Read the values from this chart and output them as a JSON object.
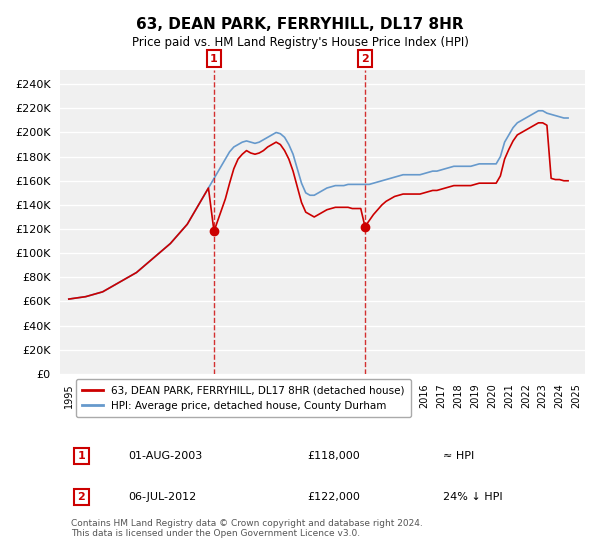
{
  "title": "63, DEAN PARK, FERRYHILL, DL17 8HR",
  "subtitle": "Price paid vs. HM Land Registry's House Price Index (HPI)",
  "ylabel_ticks": [
    0,
    20000,
    40000,
    60000,
    80000,
    100000,
    120000,
    140000,
    160000,
    180000,
    200000,
    220000,
    240000
  ],
  "ylim": [
    0,
    252000
  ],
  "xlim": [
    1994.5,
    2025.5
  ],
  "background_color": "#ffffff",
  "plot_bg_color": "#f0f0f0",
  "grid_color": "#ffffff",
  "red_line_color": "#cc0000",
  "blue_line_color": "#6699cc",
  "marker1_year": 2003.58,
  "marker1_value": 118000,
  "marker2_year": 2012.5,
  "marker2_value": 122000,
  "legend_label_red": "63, DEAN PARK, FERRYHILL, DL17 8HR (detached house)",
  "legend_label_blue": "HPI: Average price, detached house, County Durham",
  "footnote": "Contains HM Land Registry data © Crown copyright and database right 2024.\nThis data is licensed under the Open Government Licence v3.0.",
  "table_row1_num": "1",
  "table_row1_date": "01-AUG-2003",
  "table_row1_price": "£118,000",
  "table_row1_hpi": "≈ HPI",
  "table_row2_num": "2",
  "table_row2_date": "06-JUL-2012",
  "table_row2_price": "£122,000",
  "table_row2_hpi": "24% ↓ HPI",
  "hpi_data_x": [
    1995,
    1995.25,
    1995.5,
    1995.75,
    1996,
    1996.25,
    1996.5,
    1996.75,
    1997,
    1997.25,
    1997.5,
    1997.75,
    1998,
    1998.25,
    1998.5,
    1998.75,
    1999,
    1999.25,
    1999.5,
    1999.75,
    2000,
    2000.25,
    2000.5,
    2000.75,
    2001,
    2001.25,
    2001.5,
    2001.75,
    2002,
    2002.25,
    2002.5,
    2002.75,
    2003,
    2003.25,
    2003.5,
    2003.75,
    2004,
    2004.25,
    2004.5,
    2004.75,
    2005,
    2005.25,
    2005.5,
    2005.75,
    2006,
    2006.25,
    2006.5,
    2006.75,
    2007,
    2007.25,
    2007.5,
    2007.75,
    2008,
    2008.25,
    2008.5,
    2008.75,
    2009,
    2009.25,
    2009.5,
    2009.75,
    2010,
    2010.25,
    2010.5,
    2010.75,
    2011,
    2011.25,
    2011.5,
    2011.75,
    2012,
    2012.25,
    2012.5,
    2012.75,
    2013,
    2013.25,
    2013.5,
    2013.75,
    2014,
    2014.25,
    2014.5,
    2014.75,
    2015,
    2015.25,
    2015.5,
    2015.75,
    2016,
    2016.25,
    2016.5,
    2016.75,
    2017,
    2017.25,
    2017.5,
    2017.75,
    2018,
    2018.25,
    2018.5,
    2018.75,
    2019,
    2019.25,
    2019.5,
    2019.75,
    2020,
    2020.25,
    2020.5,
    2020.75,
    2021,
    2021.25,
    2021.5,
    2021.75,
    2022,
    2022.25,
    2022.5,
    2022.75,
    2023,
    2023.25,
    2023.5,
    2023.75,
    2024,
    2024.25,
    2024.5
  ],
  "hpi_data_y": [
    62000,
    62500,
    63000,
    63500,
    64000,
    65000,
    66000,
    67000,
    68000,
    70000,
    72000,
    74000,
    76000,
    78000,
    80000,
    82000,
    84000,
    87000,
    90000,
    93000,
    96000,
    99000,
    102000,
    105000,
    108000,
    112000,
    116000,
    120000,
    124000,
    130000,
    136000,
    142000,
    148000,
    154000,
    160000,
    166000,
    172000,
    178000,
    184000,
    188000,
    190000,
    192000,
    193000,
    192000,
    191000,
    192000,
    194000,
    196000,
    198000,
    200000,
    199000,
    196000,
    190000,
    182000,
    170000,
    158000,
    150000,
    148000,
    148000,
    150000,
    152000,
    154000,
    155000,
    156000,
    156000,
    156000,
    157000,
    157000,
    157000,
    157000,
    157000,
    157000,
    158000,
    159000,
    160000,
    161000,
    162000,
    163000,
    164000,
    165000,
    165000,
    165000,
    165000,
    165000,
    166000,
    167000,
    168000,
    168000,
    169000,
    170000,
    171000,
    172000,
    172000,
    172000,
    172000,
    172000,
    173000,
    174000,
    174000,
    174000,
    174000,
    174000,
    180000,
    192000,
    198000,
    204000,
    208000,
    210000,
    212000,
    214000,
    216000,
    218000,
    218000,
    216000,
    215000,
    214000,
    213000,
    212000,
    212000
  ],
  "red_data_x": [
    1995,
    1995.25,
    1995.5,
    1995.75,
    1996,
    1996.25,
    1996.5,
    1996.75,
    1997,
    1997.25,
    1997.5,
    1997.75,
    1998,
    1998.25,
    1998.5,
    1998.75,
    1999,
    1999.25,
    1999.5,
    1999.75,
    2000,
    2000.25,
    2000.5,
    2000.75,
    2001,
    2001.25,
    2001.5,
    2001.75,
    2002,
    2002.25,
    2002.5,
    2002.75,
    2003,
    2003.25,
    2003.58,
    2003.75,
    2004,
    2004.25,
    2004.5,
    2004.75,
    2005,
    2005.25,
    2005.5,
    2005.75,
    2006,
    2006.25,
    2006.5,
    2006.75,
    2007,
    2007.25,
    2007.5,
    2007.75,
    2008,
    2008.25,
    2008.5,
    2008.75,
    2009,
    2009.25,
    2009.5,
    2009.75,
    2010,
    2010.25,
    2010.5,
    2010.75,
    2011,
    2011.25,
    2011.5,
    2011.75,
    2012,
    2012.25,
    2012.5,
    2012.75,
    2013,
    2013.25,
    2013.5,
    2013.75,
    2014,
    2014.25,
    2014.5,
    2014.75,
    2015,
    2015.25,
    2015.5,
    2015.75,
    2016,
    2016.25,
    2016.5,
    2016.75,
    2017,
    2017.25,
    2017.5,
    2017.75,
    2018,
    2018.25,
    2018.5,
    2018.75,
    2019,
    2019.25,
    2019.5,
    2019.75,
    2020,
    2020.25,
    2020.5,
    2020.75,
    2021,
    2021.25,
    2021.5,
    2021.75,
    2022,
    2022.25,
    2022.5,
    2022.75,
    2023,
    2023.25,
    2023.5,
    2023.75,
    2024,
    2024.25,
    2024.5
  ],
  "red_data_y": [
    62000,
    62500,
    63000,
    63500,
    64000,
    65000,
    66000,
    67000,
    68000,
    70000,
    72000,
    74000,
    76000,
    78000,
    80000,
    82000,
    84000,
    87000,
    90000,
    93000,
    96000,
    99000,
    102000,
    105000,
    108000,
    112000,
    116000,
    120000,
    124000,
    130000,
    136000,
    142000,
    148000,
    154000,
    118000,
    125000,
    135000,
    145000,
    158000,
    170000,
    178000,
    182000,
    185000,
    183000,
    182000,
    183000,
    185000,
    188000,
    190000,
    192000,
    190000,
    185000,
    178000,
    168000,
    155000,
    142000,
    134000,
    132000,
    130000,
    132000,
    134000,
    136000,
    137000,
    138000,
    138000,
    138000,
    138000,
    137000,
    137000,
    137000,
    122000,
    127000,
    132000,
    136000,
    140000,
    143000,
    145000,
    147000,
    148000,
    149000,
    149000,
    149000,
    149000,
    149000,
    150000,
    151000,
    152000,
    152000,
    153000,
    154000,
    155000,
    156000,
    156000,
    156000,
    156000,
    156000,
    157000,
    158000,
    158000,
    158000,
    158000,
    158000,
    164000,
    178000,
    186000,
    193000,
    198000,
    200000,
    202000,
    204000,
    206000,
    208000,
    208000,
    206000,
    162000,
    161000,
    161000,
    160000,
    160000
  ]
}
